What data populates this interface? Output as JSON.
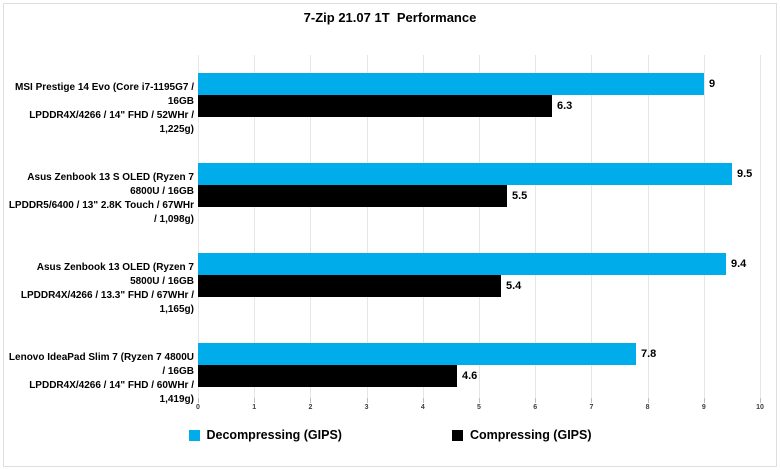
{
  "title": "7-Zip 21.07 1T  Performance",
  "colors": {
    "decompress_blue": "#00ACEA",
    "compress_black": "#000000",
    "gridline": "#e6e6e6",
    "frame_border": "#dedede"
  },
  "chart_data": {
    "type": "bar",
    "orientation": "horizontal",
    "title": "7-Zip 21.07 1T  Performance",
    "categories": [
      {
        "line1": "MSI Prestige 14 Evo (Core i7-1195G7 / 16GB",
        "line2": "LPDDR4X/4266 / 14\" FHD / 52WHr / 1,225g)"
      },
      {
        "line1": "Asus Zenbook 13 S OLED (Ryzen 7 6800U / 16GB",
        "line2": "LPDDR5/6400 / 13\" 2.8K Touch / 67WHr / 1,098g)"
      },
      {
        "line1": "Asus Zenbook 13 OLED (Ryzen 7 5800U / 16GB",
        "line2": "LPDDR4X/4266 / 13.3\" FHD / 67WHr / 1,165g)"
      },
      {
        "line1": "Lenovo IdeaPad Slim 7 (Ryzen 7 4800U / 16GB",
        "line2": "LPDDR4X/4266 / 14\" FHD / 60WHr / 1,419g)"
      }
    ],
    "series": [
      {
        "name": "Decompressing (GIPS)",
        "color": "#00ACEA",
        "values": [
          9,
          9.5,
          9.4,
          7.8
        ],
        "labels": [
          "9",
          "9.5",
          "9.4",
          "7.8"
        ]
      },
      {
        "name": "Compressing (GIPS)",
        "color": "#000000",
        "values": [
          6.3,
          5.5,
          5.4,
          4.6
        ],
        "labels": [
          "6.3",
          "5.5",
          "5.4",
          "4.6"
        ]
      }
    ],
    "xlim": [
      0,
      10
    ],
    "xticks": [
      "0",
      "1",
      "2",
      "3",
      "4",
      "5",
      "6",
      "7",
      "8",
      "9",
      "10"
    ],
    "xlabel": "",
    "ylabel": "",
    "grid": true,
    "legend_position": "bottom"
  }
}
